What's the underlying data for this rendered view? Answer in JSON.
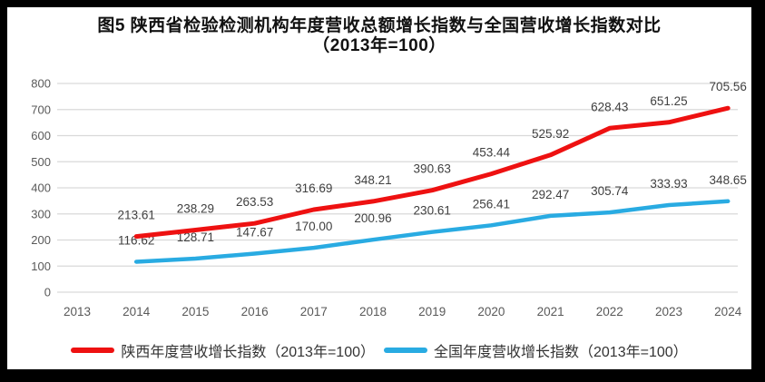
{
  "title": {
    "line1": "图5  陕西省检验检测机构年度营收总额增长指数与全国营收增长指数对比",
    "line2": "（2013年=100）"
  },
  "colors": {
    "shaanxi_line": "#EE1111",
    "national_line": "#29ABE2",
    "gridline": "#D9D9D9",
    "axis_text": "#595959",
    "data_label_text": "#404040",
    "page_border": "#000000",
    "background": "#FFFFFF"
  },
  "chart_data": {
    "type": "line",
    "title": "图5 陕西省检验检测机构年度营收总额增长指数与全国营收增长指数对比（2013年=100）",
    "x": [
      "2013",
      "2014",
      "2015",
      "2016",
      "2017",
      "2018",
      "2019",
      "2020",
      "2021",
      "2022",
      "2023",
      "2024"
    ],
    "series": [
      {
        "name": "陕西年度营收增长指数（2013年=100）",
        "color": "#EE1111",
        "start_index": 1,
        "values": [
          213.61,
          238.29,
          263.53,
          316.69,
          348.21,
          390.63,
          453.44,
          525.92,
          628.43,
          651.25,
          705.56
        ],
        "labels": [
          "213.61",
          "238.29",
          "263.53",
          "316.69",
          "348.21",
          "390.63",
          "453.44",
          "525.92",
          "628.43",
          "651.25",
          "705.56"
        ]
      },
      {
        "name": "全国年度营收增长指数（2013年=100）",
        "color": "#29ABE2",
        "start_index": 1,
        "values": [
          116.62,
          128.71,
          147.67,
          170.0,
          200.96,
          230.61,
          256.41,
          292.47,
          305.74,
          333.93,
          348.65
        ],
        "labels": [
          "116.62",
          "128.71",
          "147.67",
          "170.00",
          "200.96",
          "230.61",
          "256.41",
          "292.47",
          "305.74",
          "333.93",
          "348.65"
        ]
      }
    ],
    "ylim": [
      0,
      800
    ],
    "ytick_step": 100,
    "yticks": [
      "0",
      "100",
      "200",
      "300",
      "400",
      "500",
      "600",
      "700",
      "800"
    ],
    "grid": true,
    "legend_position": "bottom"
  }
}
